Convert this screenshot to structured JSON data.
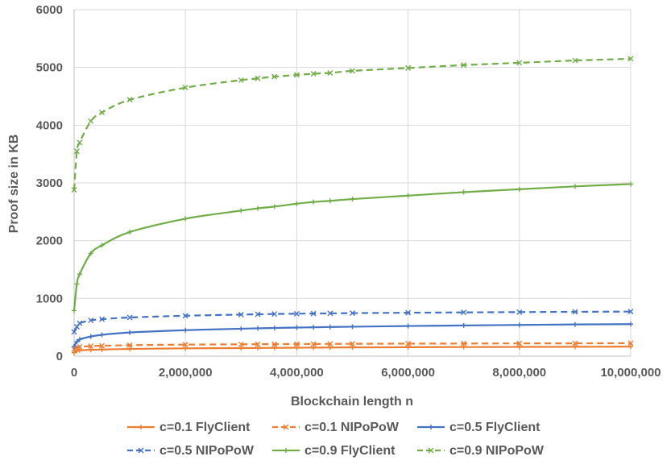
{
  "chart_data": {
    "type": "line",
    "title": "",
    "xlabel": "Blockchain length n",
    "ylabel": "Proof size in KB",
    "xlim": [
      0,
      10000000
    ],
    "ylim": [
      0,
      6000
    ],
    "xticks": [
      0,
      2000000,
      4000000,
      6000000,
      8000000,
      10000000
    ],
    "xtick_labels": [
      "0",
      "2,000,000",
      "4,000,000",
      "6,000,000",
      "8,000,000",
      "10,000,000"
    ],
    "yticks": [
      0,
      1000,
      2000,
      3000,
      4000,
      5000,
      6000
    ],
    "ytick_labels": [
      "0",
      "1000",
      "2000",
      "3000",
      "4000",
      "5000",
      "6000"
    ],
    "grid": true,
    "legend_position": "bottom",
    "series": [
      {
        "name": "c=0.1 FlyClient",
        "color": "#ed7d31",
        "dash": false,
        "marker": "plus",
        "points": [
          [
            0,
            60
          ],
          [
            50000,
            90
          ],
          [
            100000,
            100
          ],
          [
            300000,
            110
          ],
          [
            500000,
            115
          ],
          [
            1000000,
            125
          ],
          [
            2000000,
            135
          ],
          [
            3000000,
            140
          ],
          [
            3300000,
            142
          ],
          [
            3600000,
            144
          ],
          [
            4000000,
            146
          ],
          [
            4300000,
            148
          ],
          [
            4600000,
            150
          ],
          [
            5000000,
            152
          ],
          [
            6000000,
            155
          ],
          [
            7000000,
            158
          ],
          [
            8000000,
            160
          ],
          [
            9000000,
            162
          ],
          [
            10000000,
            165
          ]
        ]
      },
      {
        "name": "c=0.1 NIPoPoW",
        "color": "#ed7d31",
        "dash": true,
        "marker": "x",
        "points": [
          [
            0,
            120
          ],
          [
            50000,
            150
          ],
          [
            100000,
            160
          ],
          [
            300000,
            175
          ],
          [
            500000,
            180
          ],
          [
            1000000,
            190
          ],
          [
            2000000,
            200
          ],
          [
            3000000,
            205
          ],
          [
            3300000,
            207
          ],
          [
            3600000,
            208
          ],
          [
            4000000,
            210
          ],
          [
            4300000,
            211
          ],
          [
            4600000,
            212
          ],
          [
            5000000,
            214
          ],
          [
            6000000,
            217
          ],
          [
            7000000,
            219
          ],
          [
            8000000,
            221
          ],
          [
            9000000,
            222
          ],
          [
            10000000,
            225
          ]
        ]
      },
      {
        "name": "c=0.5 FlyClient",
        "color": "#4472c4",
        "dash": false,
        "marker": "plus",
        "points": [
          [
            0,
            170
          ],
          [
            50000,
            250
          ],
          [
            100000,
            290
          ],
          [
            300000,
            340
          ],
          [
            500000,
            370
          ],
          [
            1000000,
            410
          ],
          [
            2000000,
            450
          ],
          [
            3000000,
            475
          ],
          [
            3300000,
            482
          ],
          [
            3600000,
            488
          ],
          [
            4000000,
            495
          ],
          [
            4300000,
            500
          ],
          [
            4600000,
            505
          ],
          [
            5000000,
            510
          ],
          [
            6000000,
            522
          ],
          [
            7000000,
            532
          ],
          [
            8000000,
            541
          ],
          [
            9000000,
            549
          ],
          [
            10000000,
            555
          ]
        ]
      },
      {
        "name": "c=0.5 NIPoPoW",
        "color": "#4472c4",
        "dash": true,
        "marker": "x",
        "points": [
          [
            0,
            420
          ],
          [
            50000,
            510
          ],
          [
            100000,
            570
          ],
          [
            300000,
            620
          ],
          [
            500000,
            640
          ],
          [
            1000000,
            670
          ],
          [
            2000000,
            700
          ],
          [
            3000000,
            720
          ],
          [
            3300000,
            725
          ],
          [
            3600000,
            730
          ],
          [
            4000000,
            735
          ],
          [
            4300000,
            738
          ],
          [
            4600000,
            741
          ],
          [
            5000000,
            745
          ],
          [
            6000000,
            752
          ],
          [
            7000000,
            758
          ],
          [
            8000000,
            763
          ],
          [
            9000000,
            768
          ],
          [
            10000000,
            772
          ]
        ]
      },
      {
        "name": "c=0.9 FlyClient",
        "color": "#70ad47",
        "dash": false,
        "marker": "plus",
        "points": [
          [
            0,
            790
          ],
          [
            50000,
            1250
          ],
          [
            100000,
            1420
          ],
          [
            300000,
            1780
          ],
          [
            500000,
            1920
          ],
          [
            1000000,
            2150
          ],
          [
            2000000,
            2380
          ],
          [
            3000000,
            2520
          ],
          [
            3300000,
            2560
          ],
          [
            3600000,
            2590
          ],
          [
            4000000,
            2640
          ],
          [
            4300000,
            2670
          ],
          [
            4600000,
            2690
          ],
          [
            5000000,
            2720
          ],
          [
            6000000,
            2780
          ],
          [
            7000000,
            2840
          ],
          [
            8000000,
            2890
          ],
          [
            9000000,
            2940
          ],
          [
            10000000,
            2980
          ]
        ]
      },
      {
        "name": "c=0.9 NIPoPoW",
        "color": "#70ad47",
        "dash": true,
        "marker": "x",
        "points": [
          [
            0,
            2880
          ],
          [
            50000,
            3550
          ],
          [
            100000,
            3700
          ],
          [
            300000,
            4070
          ],
          [
            500000,
            4220
          ],
          [
            1000000,
            4440
          ],
          [
            2000000,
            4650
          ],
          [
            3000000,
            4780
          ],
          [
            3300000,
            4810
          ],
          [
            3600000,
            4840
          ],
          [
            4000000,
            4870
          ],
          [
            4300000,
            4890
          ],
          [
            4600000,
            4905
          ],
          [
            5000000,
            4940
          ],
          [
            6000000,
            4990
          ],
          [
            7000000,
            5040
          ],
          [
            8000000,
            5080
          ],
          [
            9000000,
            5120
          ],
          [
            10000000,
            5150
          ]
        ]
      }
    ]
  }
}
